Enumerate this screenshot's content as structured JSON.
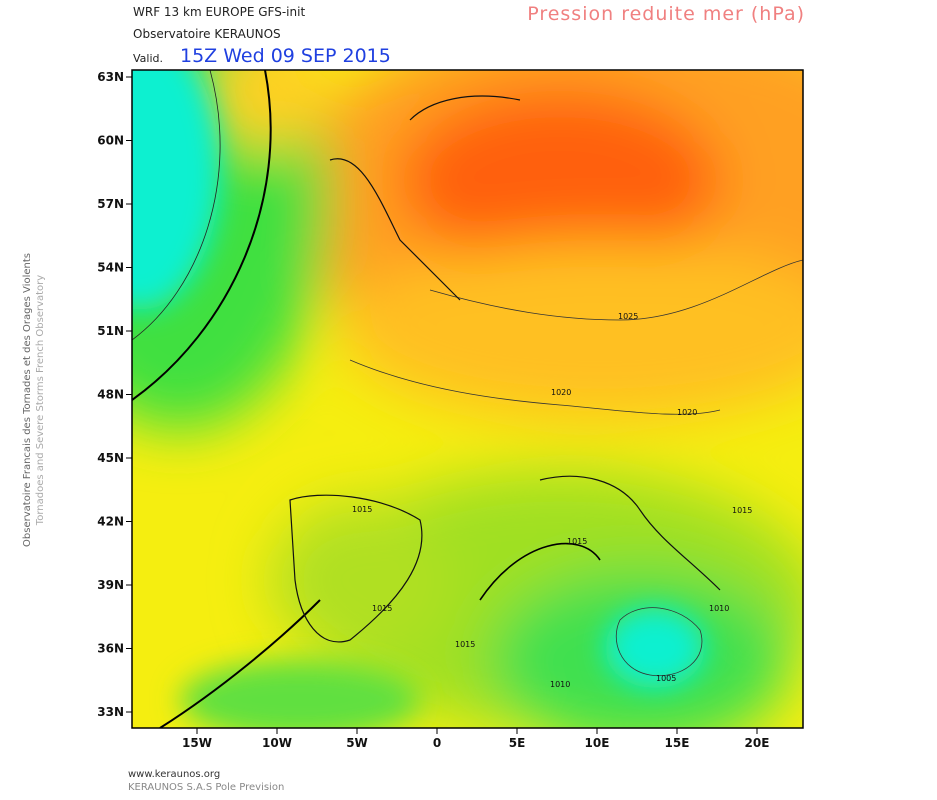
{
  "header": {
    "model": "WRF 13 km EUROPE  GFS-init",
    "source": "Observatoire KERAUNOS",
    "valid_label": "Valid.",
    "valid_time": "15Z Wed 09 SEP 2015",
    "title": "Pression reduite mer (hPa)"
  },
  "side": {
    "line1": "Observatoire Francais des Tornades et des Orages Violents",
    "line2": "Tornadoes and Severe Storms French Observatory"
  },
  "axes": {
    "lat_labels": [
      "63N",
      "60N",
      "57N",
      "54N",
      "51N",
      "48N",
      "45N",
      "42N",
      "39N",
      "36N",
      "33N"
    ],
    "lon_labels": [
      "15W",
      "10W",
      "5W",
      "0",
      "5E",
      "10E",
      "15E",
      "20E"
    ]
  },
  "contours": [
    "1025",
    "1020",
    "1020",
    "1015",
    "1015",
    "1015",
    "1015",
    "1015",
    "1010",
    "1010",
    "1005"
  ],
  "footer": {
    "site": "www.keraunos.org",
    "company": "KERAUNOS S.A.S Pole Prevision"
  }
}
